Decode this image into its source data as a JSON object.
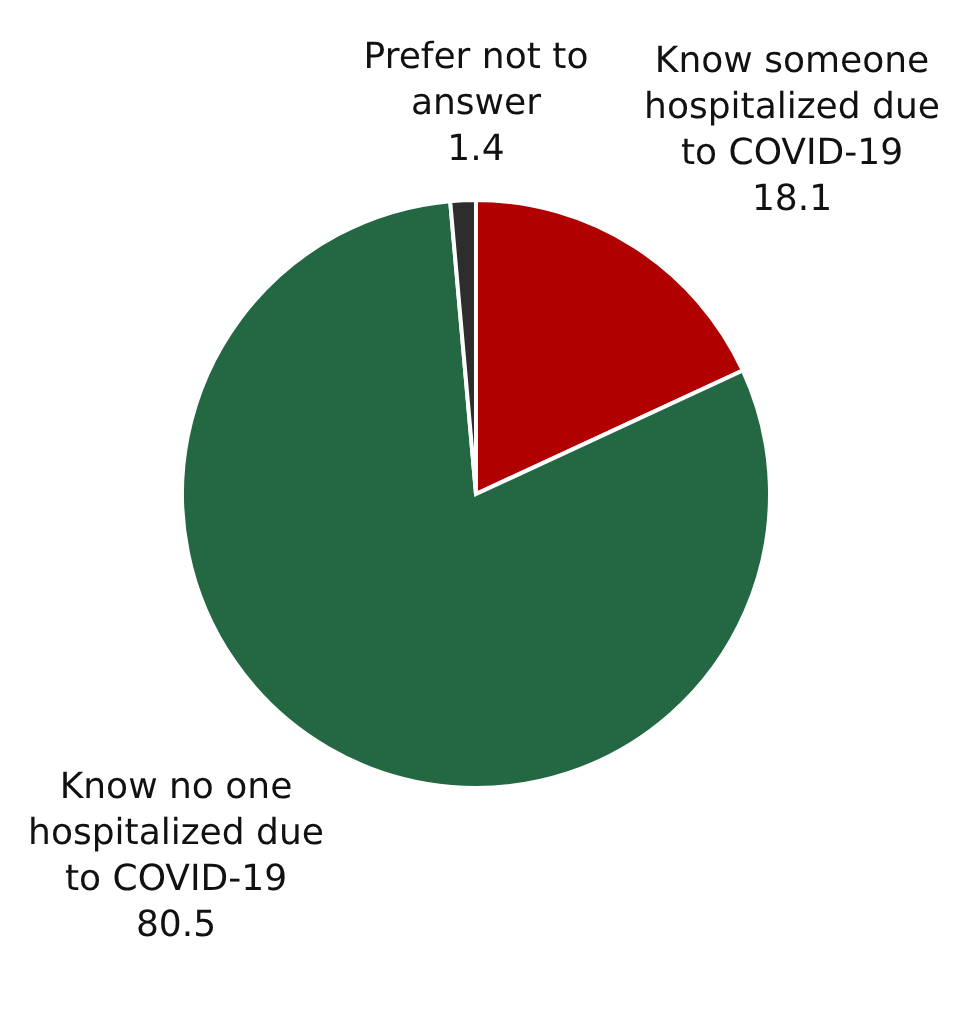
{
  "chart_data": {
    "type": "pie",
    "categories": [
      "Know someone hospitalized due to COVID-19",
      "Know no one hospitalized due to COVID-19",
      "Prefer not to answer"
    ],
    "values": [
      18.1,
      80.5,
      1.4
    ],
    "colors": [
      "#b00000",
      "#236843",
      "#2d2d2d"
    ],
    "data_labels": true
  }
}
